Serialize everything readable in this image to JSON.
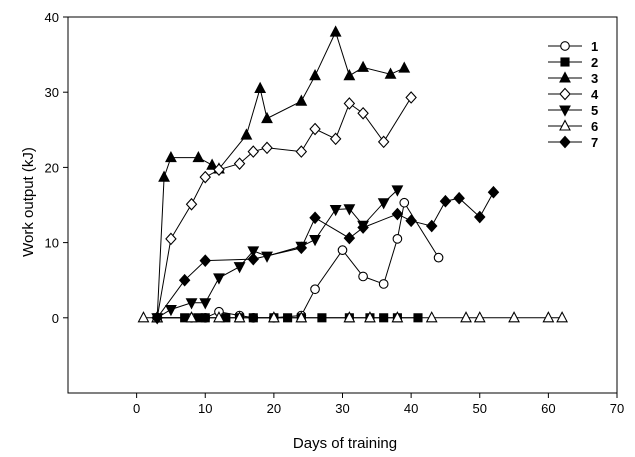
{
  "chart_data": {
    "type": "line",
    "title": "",
    "xlabel": "Days of training",
    "ylabel": "Work output (kJ)",
    "xlim": [
      -10,
      70
    ],
    "ylim": [
      -10,
      40
    ],
    "xticks": [
      0,
      10,
      20,
      30,
      40,
      50,
      60,
      70
    ],
    "yticks": [
      0,
      10,
      20,
      30,
      40
    ],
    "grid": false,
    "legend_position": "top-right",
    "series": [
      {
        "name": "1",
        "marker": "circle-open",
        "color": "#000000",
        "points": [
          [
            3,
            0
          ],
          [
            8,
            0
          ],
          [
            10,
            0
          ],
          [
            12,
            0.8
          ],
          [
            15,
            0.3
          ],
          [
            17,
            0
          ],
          [
            20,
            0
          ],
          [
            24,
            0.3
          ],
          [
            26,
            3.8
          ],
          [
            30,
            9
          ],
          [
            33,
            5.5
          ],
          [
            36,
            4.5
          ],
          [
            38,
            10.5
          ],
          [
            39,
            15.3
          ],
          [
            44,
            8
          ]
        ]
      },
      {
        "name": "2",
        "marker": "square-filled",
        "color": "#000000",
        "points": [
          [
            3,
            0
          ],
          [
            7,
            0
          ],
          [
            9,
            0
          ],
          [
            10,
            0
          ],
          [
            13,
            0
          ],
          [
            15,
            0
          ],
          [
            17,
            0
          ],
          [
            20,
            0
          ],
          [
            22,
            0
          ],
          [
            24,
            0
          ],
          [
            27,
            0
          ],
          [
            31,
            0
          ],
          [
            34,
            0
          ],
          [
            36,
            0
          ],
          [
            38,
            0
          ],
          [
            41,
            0
          ]
        ]
      },
      {
        "name": "3",
        "marker": "triangle-up-filled",
        "color": "#000000",
        "points": [
          [
            3,
            0
          ],
          [
            4,
            18.7
          ],
          [
            5,
            21.3
          ],
          [
            9,
            21.3
          ],
          [
            11,
            20.3
          ],
          [
            12,
            19.8
          ],
          [
            16,
            24.3
          ],
          [
            18,
            30.5
          ],
          [
            19,
            26.5
          ],
          [
            24,
            28.8
          ],
          [
            26,
            32.2
          ],
          [
            29,
            38
          ],
          [
            31,
            32.2
          ],
          [
            33,
            33.3
          ],
          [
            37,
            32.4
          ],
          [
            39,
            33.2
          ]
        ]
      },
      {
        "name": "4",
        "marker": "diamond-open",
        "color": "#000000",
        "points": [
          [
            3,
            0
          ],
          [
            5,
            10.5
          ],
          [
            8,
            15.1
          ],
          [
            10,
            18.7
          ],
          [
            12,
            19.7
          ],
          [
            15,
            20.5
          ],
          [
            17,
            22.1
          ],
          [
            19,
            22.6
          ],
          [
            24,
            22.1
          ],
          [
            26,
            25.1
          ],
          [
            29,
            23.8
          ],
          [
            31,
            28.5
          ],
          [
            33,
            27.2
          ],
          [
            36,
            23.4
          ],
          [
            40,
            29.3
          ]
        ]
      },
      {
        "name": "5",
        "marker": "triangle-down-filled",
        "color": "#000000",
        "points": [
          [
            3,
            0
          ],
          [
            5,
            1.1
          ],
          [
            8,
            2
          ],
          [
            10,
            2
          ],
          [
            12,
            5.3
          ],
          [
            15,
            6.8
          ],
          [
            17,
            8.9
          ],
          [
            19,
            8.2
          ],
          [
            24,
            9.5
          ],
          [
            26,
            10.4
          ],
          [
            29,
            14.4
          ],
          [
            31,
            14.5
          ],
          [
            33,
            12.3
          ],
          [
            36,
            15.3
          ],
          [
            38,
            17
          ]
        ]
      },
      {
        "name": "6",
        "marker": "triangle-up-open",
        "color": "#000000",
        "points": [
          [
            1,
            0
          ],
          [
            3,
            0
          ],
          [
            8,
            0
          ],
          [
            12,
            0
          ],
          [
            15,
            0
          ],
          [
            20,
            0
          ],
          [
            24,
            0
          ],
          [
            31,
            0
          ],
          [
            34,
            0
          ],
          [
            38,
            0
          ],
          [
            43,
            0
          ],
          [
            48,
            0
          ],
          [
            50,
            0
          ],
          [
            55,
            0
          ],
          [
            60,
            0
          ],
          [
            62,
            0
          ]
        ]
      },
      {
        "name": "7",
        "marker": "diamond-filled",
        "color": "#000000",
        "points": [
          [
            3,
            0
          ],
          [
            7,
            5
          ],
          [
            10,
            7.6
          ],
          [
            17,
            7.8
          ],
          [
            24,
            9.3
          ],
          [
            26,
            13.3
          ],
          [
            31,
            10.6
          ],
          [
            33,
            12
          ],
          [
            38,
            13.8
          ],
          [
            40,
            12.9
          ],
          [
            43,
            12.2
          ],
          [
            45,
            15.5
          ],
          [
            47,
            15.9
          ],
          [
            50,
            13.4
          ],
          [
            52,
            16.7
          ]
        ]
      }
    ]
  }
}
